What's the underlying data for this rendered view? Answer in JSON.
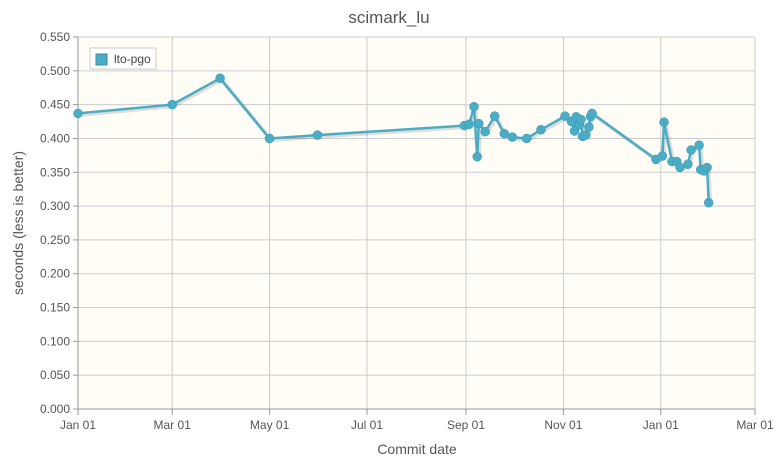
{
  "chart_data": {
    "type": "line",
    "title": "scimark_lu",
    "xlabel": "Commit date",
    "ylabel": "seconds (less is better)",
    "x_ticks": [
      "Jan 01",
      "Mar 01",
      "May 01",
      "Jul 01",
      "Sep 01",
      "Nov 01",
      "Jan 01",
      "Mar 01"
    ],
    "x_tick_dates": [
      "2014-01-01",
      "2014-03-01",
      "2014-05-01",
      "2014-07-01",
      "2014-09-01",
      "2014-11-01",
      "2015-01-01",
      "2015-03-01"
    ],
    "xlim": [
      "2014-01-01",
      "2015-03-01"
    ],
    "y_ticks": [
      "0.000",
      "0.050",
      "0.100",
      "0.150",
      "0.200",
      "0.250",
      "0.300",
      "0.350",
      "0.400",
      "0.450",
      "0.500",
      "0.550"
    ],
    "ylim": [
      0,
      0.55
    ],
    "grid": true,
    "legend_position": "top-left",
    "colors": {
      "series": "#4bacc6",
      "plot_background": "#fffdf6",
      "grid": "#cccccc"
    },
    "series": [
      {
        "name": "lto-pgo",
        "points": [
          {
            "x": "2014-01-01",
            "y": 0.437
          },
          {
            "x": "2014-03-01",
            "y": 0.45
          },
          {
            "x": "2014-03-31",
            "y": 0.489
          },
          {
            "x": "2014-05-01",
            "y": 0.4
          },
          {
            "x": "2014-05-31",
            "y": 0.405
          },
          {
            "x": "2014-08-31",
            "y": 0.419
          },
          {
            "x": "2014-09-03",
            "y": 0.421
          },
          {
            "x": "2014-09-06",
            "y": 0.447
          },
          {
            "x": "2014-09-08",
            "y": 0.373
          },
          {
            "x": "2014-09-09",
            "y": 0.422
          },
          {
            "x": "2014-09-13",
            "y": 0.41
          },
          {
            "x": "2014-09-19",
            "y": 0.433
          },
          {
            "x": "2014-09-25",
            "y": 0.407
          },
          {
            "x": "2014-09-30",
            "y": 0.402
          },
          {
            "x": "2014-10-09",
            "y": 0.4
          },
          {
            "x": "2014-10-18",
            "y": 0.413
          },
          {
            "x": "2014-11-02",
            "y": 0.433
          },
          {
            "x": "2014-11-06",
            "y": 0.425
          },
          {
            "x": "2014-11-08",
            "y": 0.411
          },
          {
            "x": "2014-11-09",
            "y": 0.432
          },
          {
            "x": "2014-11-11",
            "y": 0.42
          },
          {
            "x": "2014-11-12",
            "y": 0.428
          },
          {
            "x": "2014-11-13",
            "y": 0.403
          },
          {
            "x": "2014-11-15",
            "y": 0.405
          },
          {
            "x": "2014-11-17",
            "y": 0.417
          },
          {
            "x": "2014-11-18",
            "y": 0.432
          },
          {
            "x": "2014-11-19",
            "y": 0.437
          },
          {
            "x": "2014-12-29",
            "y": 0.369
          },
          {
            "x": "2015-01-02",
            "y": 0.374
          },
          {
            "x": "2015-01-03",
            "y": 0.424
          },
          {
            "x": "2015-01-08",
            "y": 0.366
          },
          {
            "x": "2015-01-11",
            "y": 0.366
          },
          {
            "x": "2015-01-13",
            "y": 0.357
          },
          {
            "x": "2015-01-18",
            "y": 0.362
          },
          {
            "x": "2015-01-20",
            "y": 0.383
          },
          {
            "x": "2015-01-25",
            "y": 0.39
          },
          {
            "x": "2015-01-26",
            "y": 0.354
          },
          {
            "x": "2015-01-28",
            "y": 0.352
          },
          {
            "x": "2015-01-30",
            "y": 0.357
          },
          {
            "x": "2015-01-31",
            "y": 0.305
          }
        ]
      }
    ]
  }
}
